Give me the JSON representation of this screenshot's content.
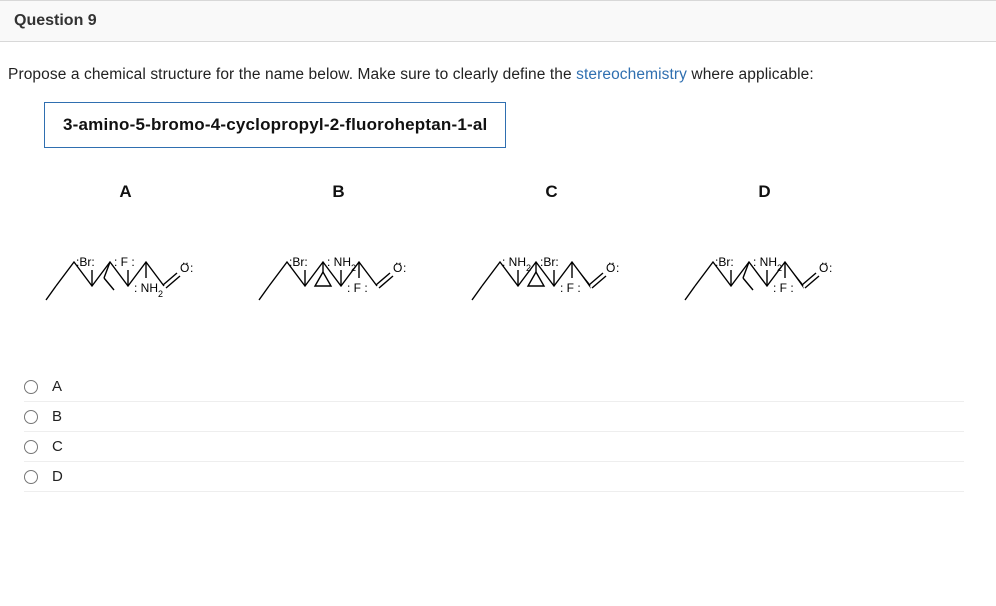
{
  "header": {
    "title": "Question 9"
  },
  "prompt": {
    "pre": "Propose a chemical structure for the name below. Make sure to clearly define the ",
    "highlight": "stereochemistry",
    "post": " where applicable:"
  },
  "compound_name": "3-amino-5-bromo-4-cyclopropyl-2-fluoroheptan-1-al",
  "structures": [
    {
      "label": "A",
      "top_left": ":Br:",
      "top_right": ": F :",
      "bottom_sub": ": NH",
      "bottom_sub_num": "2",
      "aldehyde_o": "O",
      "has_cyclopropyl": false,
      "chain_extend": true,
      "colors": {
        "br": "#000",
        "f": "#000",
        "nh": "#000",
        "o": "#d43535"
      }
    },
    {
      "label": "B",
      "top_left": ":Br:",
      "top_right": ": NH",
      "top_right_num": "2",
      "bottom_sub": ": F :",
      "aldehyde_o": "O",
      "has_cyclopropyl": true,
      "chain_extend": false,
      "colors": {
        "br": "#000",
        "f": "#000",
        "nh": "#000",
        "o": "#d43535"
      }
    },
    {
      "label": "C",
      "top_left": ": NH",
      "top_left_num": "2",
      "top_right": ":Br:",
      "bottom_sub": ": F :",
      "aldehyde_o": "O",
      "has_cyclopropyl": true,
      "chain_extend": false,
      "wedge_on_cho": true,
      "colors": {
        "br": "#000",
        "f": "#000",
        "nh": "#000",
        "o": "#d43535"
      }
    },
    {
      "label": "D",
      "top_left": ":Br:",
      "top_right": ": NH",
      "top_right_num": "2",
      "bottom_sub": ": F :",
      "aldehyde_o": "O",
      "has_cyclopropyl": false,
      "chain_extend": true,
      "wedge_on_cho": true,
      "colors": {
        "br": "#d43535",
        "f": "#2f6fb0",
        "nh": "#2f6fb0",
        "o": "#d43535"
      }
    }
  ],
  "options": [
    {
      "label": "A",
      "value": "A"
    },
    {
      "label": "B",
      "value": "B"
    },
    {
      "label": "C",
      "value": "C"
    },
    {
      "label": "D",
      "value": "D"
    }
  ],
  "styling": {
    "page_bg": "#ffffff",
    "header_bg": "#f9f9f9",
    "border_color": "#d8d8d8",
    "box_border": "#2f6fb0",
    "link_color": "#2f6fb0",
    "text_color": "#222222",
    "option_divider": "#eeeeee",
    "bond_stroke_width": 1.4,
    "atom_fontsize": 12,
    "label_fontsize": 17
  }
}
